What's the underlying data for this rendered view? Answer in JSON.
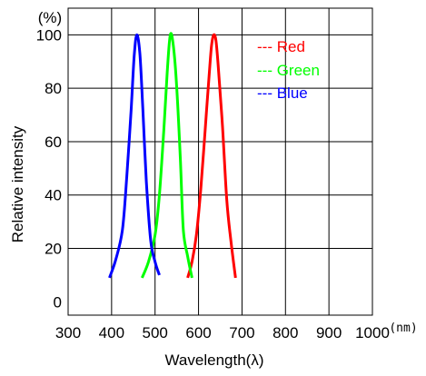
{
  "chart_data": {
    "type": "line",
    "xlabel": "Wavelength(λ)",
    "xunit": "(nm)",
    "ylabel": "Relative intensity",
    "yunit": "(%)",
    "xlim": [
      300,
      1000
    ],
    "ylim": [
      -5,
      110
    ],
    "x_ticks": [
      "300",
      "400",
      "500",
      "600",
      "700",
      "800",
      "900",
      "1000"
    ],
    "y_ticks": [
      "0",
      "20",
      "40",
      "60",
      "80",
      "100"
    ],
    "grid": true,
    "legend_position": "top-right",
    "series": [
      {
        "name": "Red",
        "legend_label": "--- Red",
        "color": "#ff0000",
        "x": [
          575,
          585,
          595,
          605,
          615,
          625,
          630,
          635,
          640,
          645,
          655,
          665,
          675,
          685
        ],
        "y": [
          9,
          15,
          25,
          42,
          64,
          86,
          96,
          100,
          98,
          89,
          66,
          38,
          22,
          9
        ]
      },
      {
        "name": "Green",
        "legend_label": "--- Green",
        "color": "#00ff00",
        "x": [
          470,
          485,
          500,
          510,
          520,
          528,
          535,
          542,
          550,
          558,
          565,
          575,
          585
        ],
        "y": [
          9,
          15,
          25,
          40,
          64,
          86,
          100,
          96,
          80,
          54,
          27,
          17,
          9
        ]
      },
      {
        "name": "Blue",
        "legend_label": "--- Blue",
        "color": "#0000ff",
        "x": [
          395,
          410,
          425,
          435,
          445,
          452,
          458,
          465,
          472,
          480,
          490,
          500,
          510
        ],
        "y": [
          9,
          16,
          27,
          47,
          72,
          92,
          100,
          93,
          72,
          45,
          23,
          15,
          10
        ]
      }
    ]
  }
}
